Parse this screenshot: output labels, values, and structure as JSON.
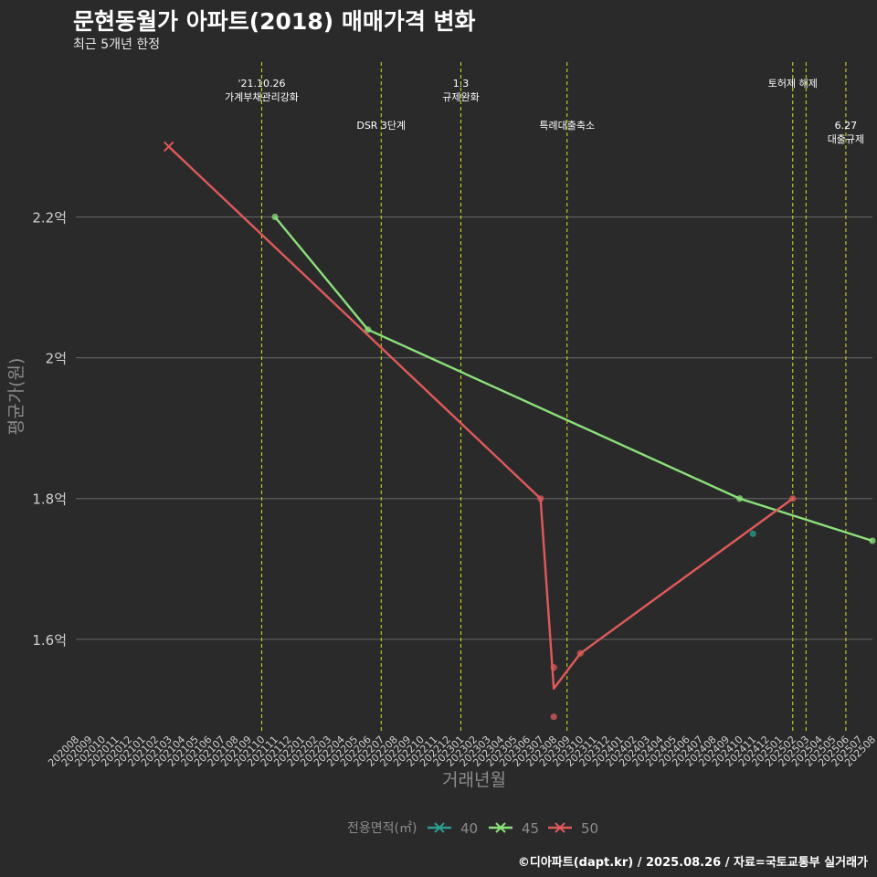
{
  "title": "문현동월가 아파트(2018) 매매가격 변화",
  "subtitle": "최근 5개년 한정",
  "caption": "©디아파트(dapt.kr) / 2025.08.26 / 자료=국토교통부 실거래가",
  "colors": {
    "background": "#2b2a2b",
    "grid": "#5e5e5e",
    "event_line": "#d9e21f",
    "axis_text": "#d0d0d0",
    "axis_title": "#8c8c8c"
  },
  "chart_data": {
    "type": "line",
    "title": "문현동월가 아파트(2018) 매매가격 변화",
    "subtitle": "최근 5개년 한정",
    "xlabel": "거래년월",
    "ylabel": "평균가(원)",
    "x_categories": [
      "202008",
      "202009",
      "202010",
      "202011",
      "202012",
      "202101",
      "202102",
      "202103",
      "202104",
      "202105",
      "202106",
      "202107",
      "202108",
      "202109",
      "202110",
      "202111",
      "202112",
      "202201",
      "202202",
      "202203",
      "202204",
      "202205",
      "202206",
      "202207",
      "202208",
      "202209",
      "202210",
      "202211",
      "202212",
      "202301",
      "202302",
      "202303",
      "202304",
      "202305",
      "202306",
      "202307",
      "202308",
      "202309",
      "202310",
      "202311",
      "202312",
      "202401",
      "202402",
      "202403",
      "202404",
      "202405",
      "202406",
      "202407",
      "202408",
      "202409",
      "202410",
      "202411",
      "202412",
      "202501",
      "202502",
      "202503",
      "202504",
      "202505",
      "202506",
      "202507",
      "202508"
    ],
    "ylim": [
      1.47,
      2.42
    ],
    "yticks": [
      1.6,
      1.8,
      2.0,
      2.2
    ],
    "ytick_labels": [
      "1.6억",
      "1.8억",
      "2억",
      "2.2억"
    ],
    "grid": true,
    "legend_title": "전용면적(㎡)",
    "legend_position": "bottom",
    "series": [
      {
        "name": "40",
        "color": "#2a9d8f",
        "line": [],
        "points": [
          {
            "x": 202411,
            "y": 1.75
          }
        ]
      },
      {
        "name": "45",
        "color": "#8be17a",
        "line": [
          {
            "x": 202111,
            "y": 2.2
          },
          {
            "x": 202206,
            "y": 2.04
          },
          {
            "x": 202410,
            "y": 1.8
          },
          {
            "x": 202508,
            "y": 1.74
          }
        ],
        "points": [
          {
            "x": 202111,
            "y": 2.2
          },
          {
            "x": 202206,
            "y": 2.04
          },
          {
            "x": 202410,
            "y": 1.8
          },
          {
            "x": 202508,
            "y": 1.74
          }
        ]
      },
      {
        "name": "50",
        "color": "#e05a5a",
        "line": [
          {
            "x": 202103,
            "y": 2.3
          },
          {
            "x": 202307,
            "y": 1.8
          },
          {
            "x": 202308,
            "y": 1.53
          },
          {
            "x": 202310,
            "y": 1.58
          },
          {
            "x": 202502,
            "y": 1.8
          }
        ],
        "points": [
          {
            "x": 202307,
            "y": 1.8
          },
          {
            "x": 202308,
            "y": 1.56
          },
          {
            "x": 202308,
            "y": 1.49
          },
          {
            "x": 202310,
            "y": 1.58
          },
          {
            "x": 202502,
            "y": 1.8
          }
        ],
        "cross": [
          {
            "x": 202103,
            "y": 2.3
          }
        ]
      }
    ],
    "events": [
      {
        "x": 202110,
        "label_lines": [
          "'21.10.26",
          "가계부채관리강화"
        ],
        "level": "upper"
      },
      {
        "x": 202207,
        "label_lines": [
          "DSR 3단계"
        ],
        "level": "lower"
      },
      {
        "x": 202301,
        "label_lines": [
          "1.3",
          "규제완화"
        ],
        "level": "upper"
      },
      {
        "x": 202309,
        "label_lines": [
          "특례대출축소"
        ],
        "level": "lower"
      },
      {
        "x": 202502,
        "label_lines": [
          "토허제 해제"
        ],
        "level": "upper",
        "dx": 0
      },
      {
        "x": 202503,
        "label_lines": [],
        "level": "upper"
      },
      {
        "x": 202506,
        "label_lines": [
          "6.27",
          "대출규제"
        ],
        "level": "lower"
      }
    ]
  }
}
